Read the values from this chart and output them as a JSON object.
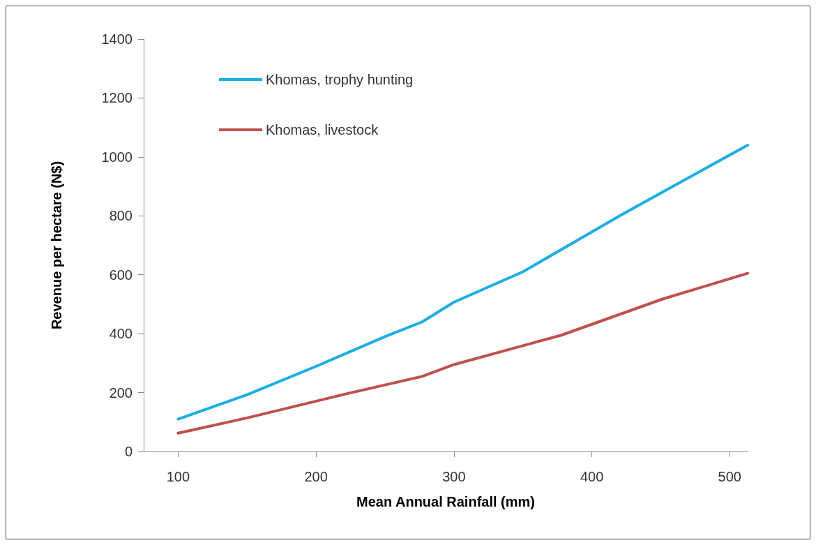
{
  "chart_data": {
    "type": "line",
    "xlabel": "Mean Annual Rainfall (mm)",
    "ylabel": "Revenue per hectare (N$)",
    "xlim": [
      75,
      513
    ],
    "xticks": [
      100,
      200,
      300,
      400,
      500
    ],
    "ylim": [
      0,
      1400
    ],
    "yticks": [
      0,
      200,
      400,
      600,
      800,
      1000,
      1200,
      1400
    ],
    "grid": false,
    "legend": "top left",
    "marker": "none",
    "line_style": "solid",
    "series": [
      {
        "name": "Khomas, trophy hunting",
        "color": "#1aaee6",
        "x": [
          100,
          150,
          200,
          250,
          277,
          300,
          350,
          422,
          513
        ],
        "values": [
          110,
          193,
          289,
          390,
          440,
          507,
          610,
          805,
          1040
        ]
      },
      {
        "name": "Khomas, livestock",
        "color": "#c0504d",
        "x": [
          100,
          150,
          224,
          277,
          300,
          378,
          451,
          513
        ],
        "values": [
          62,
          114,
          198,
          255,
          295,
          395,
          517,
          605
        ]
      }
    ]
  }
}
